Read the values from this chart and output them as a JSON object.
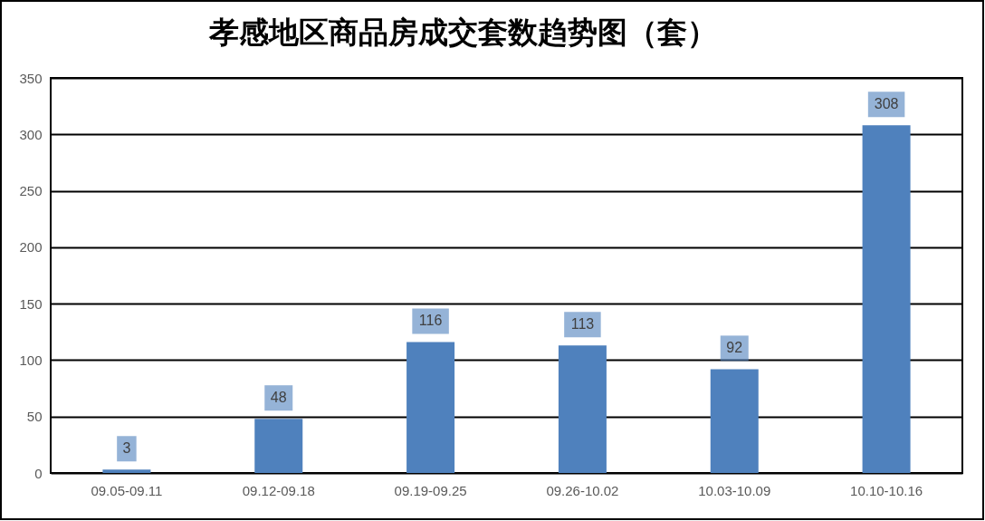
{
  "chart_data": {
    "type": "bar",
    "title": "孝感地区商品房成交套数趋势图（套）",
    "categories": [
      "09.05-09.11",
      "09.12-09.18",
      "09.19-09.25",
      "09.26-10.02",
      "10.03-10.09",
      "10.10-10.16"
    ],
    "values": [
      3,
      48,
      116,
      113,
      92,
      308
    ],
    "color": "#4f81bd",
    "ylim": [
      0,
      350
    ],
    "yticks": [
      0,
      50,
      100,
      150,
      200,
      250,
      300,
      350
    ],
    "grid": "y",
    "data_labels": true
  }
}
